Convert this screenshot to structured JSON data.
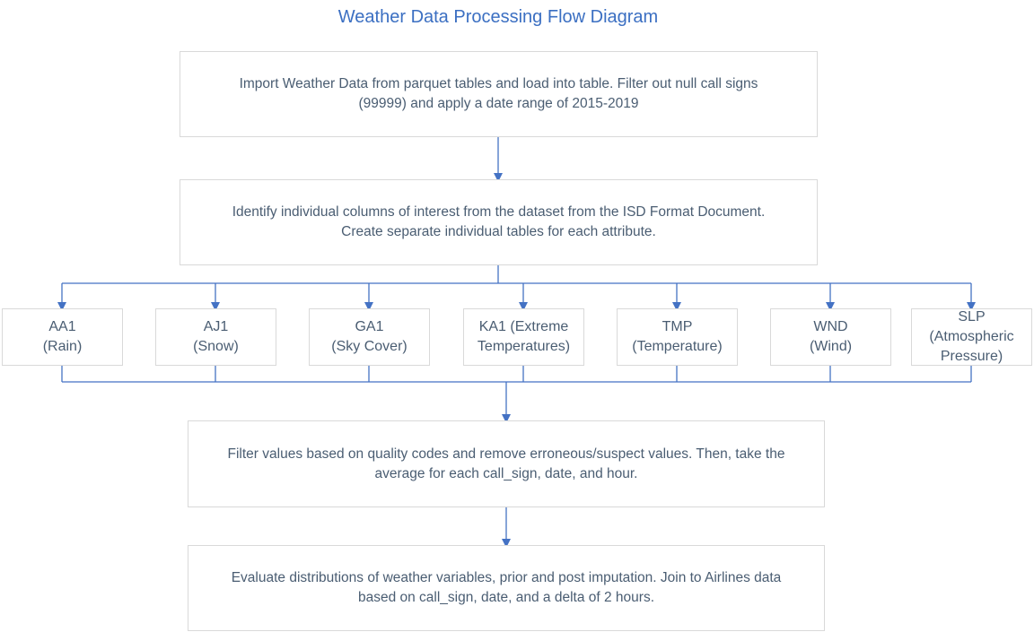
{
  "title": "Weather Data Processing Flow Diagram",
  "steps": [
    {
      "text": "Import Weather Data from parquet tables and load into table. Filter out null call signs\n(99999) and apply a date range of 2015-2019"
    },
    {
      "text": "Identify individual columns of interest from the dataset from the ISD Format Document.\nCreate separate individual tables for each attribute."
    },
    {
      "text": "Filter values based on quality codes and remove erroneous/suspect values. Then, take the\naverage for each call_sign, date, and hour."
    },
    {
      "text": "Evaluate distributions of weather variables, prior and post imputation. Join to Airlines data\nbased on call_sign, date, and a delta of 2 hours."
    }
  ],
  "attributes": [
    {
      "text": "AA1\n(Rain)"
    },
    {
      "text": "AJ1\n(Snow)"
    },
    {
      "text": "GA1\n(Sky Cover)"
    },
    {
      "text": "KA1 (Extreme\nTemperatures)"
    },
    {
      "text": "TMP\n(Temperature)"
    },
    {
      "text": "WND\n(Wind)"
    },
    {
      "text": "SLP\n(Atmospheric\nPressure)"
    }
  ],
  "colors": {
    "title": "#3b6fc2",
    "connector": "#4472c4",
    "box_border": "#d9d9d9",
    "text": "#4a5d72"
  }
}
